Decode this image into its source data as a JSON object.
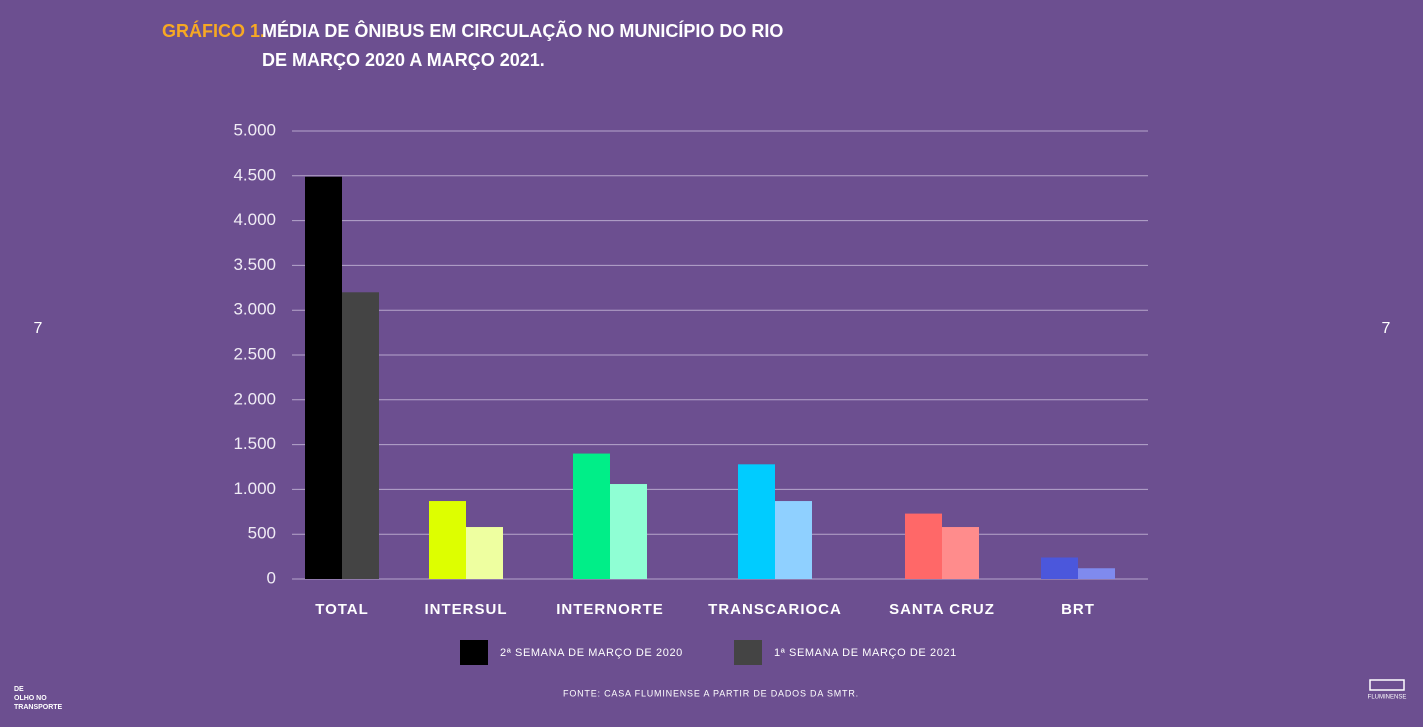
{
  "chart_data": {
    "type": "bar",
    "label": "GRÁFICO 1.",
    "title": [
      "MÉDIA DE ÔNIBUS EM CIRCULAÇÃO NO MUNICÍPIO DO RIO",
      "DE MARÇO 2020 A MARÇO 2021."
    ],
    "categories": [
      "TOTAL",
      "INTERSUL",
      "INTERNORTE",
      "TRANSCARIOCA",
      "SANTA CRUZ",
      "BRT"
    ],
    "series": [
      {
        "name": "2ª SEMANA DE MARÇO DE 2020",
        "color": "#000000",
        "colors": [
          "#000000",
          "#ddff00",
          "#00ee88",
          "#00ccff",
          "#ff6868",
          "#4b57dc"
        ],
        "values": [
          4490,
          870,
          1400,
          1280,
          730,
          240
        ]
      },
      {
        "name": "1ª SEMANA DE MARÇO DE 2021",
        "color": "#444444",
        "colors": [
          "#444444",
          "#eeffa0",
          "#8fffd4",
          "#8fd0ff",
          "#ff8c8c",
          "#7f8aee"
        ],
        "values": [
          3200,
          580,
          1060,
          870,
          580,
          120
        ]
      }
    ],
    "ylim": [
      0,
      5000
    ],
    "yticks": [
      0,
      500,
      {
        "value": 1000,
        "label": "1.000"
      },
      {
        "value": 1500,
        "label": "1.500"
      },
      {
        "value": 2000,
        "label": "2.000"
      },
      {
        "value": 2500,
        "label": "2.500"
      },
      {
        "value": 3000,
        "label": "3.000"
      },
      {
        "value": 3500,
        "label": "3.500"
      },
      {
        "value": 4000,
        "label": "4.000"
      },
      {
        "value": 4500,
        "label": "4.500"
      },
      {
        "value": 5000,
        "label": "5.000"
      }
    ],
    "grid": true,
    "source": "FONTE: CASA FLUMINENSE A PARTIR DE DADOS DA SMTR."
  },
  "page_numbers": [
    "7",
    "7"
  ],
  "logo_left": [
    "DE",
    "OLHO NO",
    "TRANSPORTE"
  ],
  "logo_right": "FLUMINENSE"
}
